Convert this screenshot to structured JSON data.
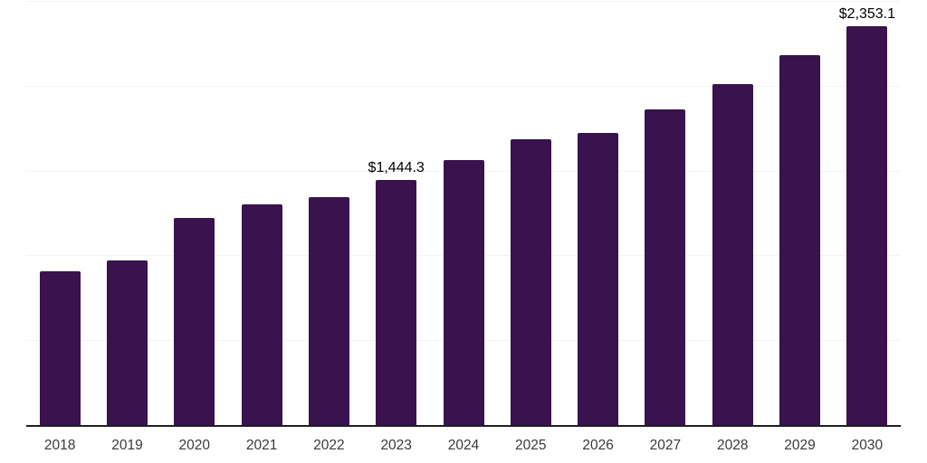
{
  "chart": {
    "background_color": "#ffffff",
    "bar_color": "#39124E",
    "axis_line_color": "#1f1f1f",
    "gridline_color": "#f3f3f3",
    "tick_label_color": "#3a3a3a",
    "data_label_color": "#000000"
  },
  "chart_data": {
    "type": "bar",
    "title": "",
    "xlabel": "",
    "ylabel": "",
    "categories": [
      "2018",
      "2019",
      "2020",
      "2021",
      "2022",
      "2023",
      "2024",
      "2025",
      "2026",
      "2027",
      "2028",
      "2029",
      "2030"
    ],
    "values": [
      905,
      970,
      1220,
      1300,
      1345,
      1444.3,
      1560,
      1685,
      1720,
      1858,
      2012,
      2178,
      2353.1
    ],
    "data_labels": [
      null,
      null,
      null,
      null,
      null,
      "$1,444.3",
      null,
      null,
      null,
      null,
      null,
      null,
      "$2,353.1"
    ],
    "ylim": [
      0,
      2500
    ],
    "gridlines": [
      500,
      1000,
      1500,
      2000,
      2500
    ],
    "grid": true,
    "legend": "none"
  }
}
